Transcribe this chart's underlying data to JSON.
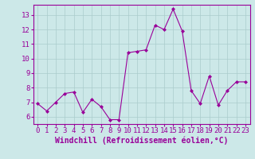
{
  "x": [
    0,
    1,
    2,
    3,
    4,
    5,
    6,
    7,
    8,
    9,
    10,
    11,
    12,
    13,
    14,
    15,
    16,
    17,
    18,
    19,
    20,
    21,
    22,
    23
  ],
  "y": [
    6.9,
    6.4,
    7.0,
    7.6,
    7.7,
    6.3,
    7.2,
    6.7,
    5.8,
    5.8,
    10.4,
    10.5,
    10.6,
    12.3,
    12.0,
    13.4,
    11.9,
    7.8,
    6.9,
    8.8,
    6.8,
    7.8,
    8.4,
    8.4
  ],
  "line_color": "#990099",
  "marker": "D",
  "marker_size": 2,
  "bg_color": "#cce8e8",
  "grid_color": "#aacccc",
  "xlabel": "Windchill (Refroidissement éolien,°C)",
  "ylim": [
    5.5,
    13.7
  ],
  "xlim": [
    -0.5,
    23.5
  ],
  "yticks": [
    6,
    7,
    8,
    9,
    10,
    11,
    12,
    13
  ],
  "xticks": [
    0,
    1,
    2,
    3,
    4,
    5,
    6,
    7,
    8,
    9,
    10,
    11,
    12,
    13,
    14,
    15,
    16,
    17,
    18,
    19,
    20,
    21,
    22,
    23
  ],
  "tick_color": "#990099",
  "label_color": "#990099",
  "axis_color": "#990099",
  "tick_fontsize": 6.5,
  "xlabel_fontsize": 7,
  "line_width": 0.8
}
